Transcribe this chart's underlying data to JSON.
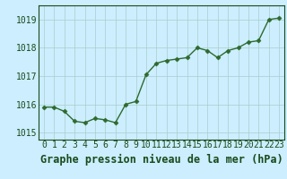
{
  "x": [
    0,
    1,
    2,
    3,
    4,
    5,
    6,
    7,
    8,
    9,
    10,
    11,
    12,
    13,
    14,
    15,
    16,
    17,
    18,
    19,
    20,
    21,
    22,
    23
  ],
  "y": [
    1015.9,
    1015.9,
    1015.75,
    1015.4,
    1015.35,
    1015.5,
    1015.45,
    1015.35,
    1016.0,
    1016.1,
    1017.05,
    1017.45,
    1017.55,
    1017.6,
    1017.65,
    1018.0,
    1017.9,
    1017.65,
    1017.9,
    1018.0,
    1018.2,
    1018.25,
    1019.0,
    1019.05
  ],
  "line_color": "#2d6a2d",
  "marker": "D",
  "marker_size": 2.5,
  "bg_color": "#cceeff",
  "grid_color": "#aacccc",
  "title": "Graphe pression niveau de la mer (hPa)",
  "ylim": [
    1014.75,
    1019.5
  ],
  "xlim": [
    -0.5,
    23.5
  ],
  "yticks": [
    1015,
    1016,
    1017,
    1018,
    1019
  ],
  "xtick_labels": [
    "0",
    "1",
    "2",
    "3",
    "4",
    "5",
    "6",
    "7",
    "8",
    "9",
    "10",
    "11",
    "12",
    "13",
    "14",
    "15",
    "16",
    "17",
    "18",
    "19",
    "20",
    "21",
    "22",
    "23"
  ],
  "title_fontsize": 8.5,
  "tick_fontsize": 7,
  "title_color": "#1a4a1a",
  "axis_color": "#1a4a1a",
  "line_width": 1.0
}
